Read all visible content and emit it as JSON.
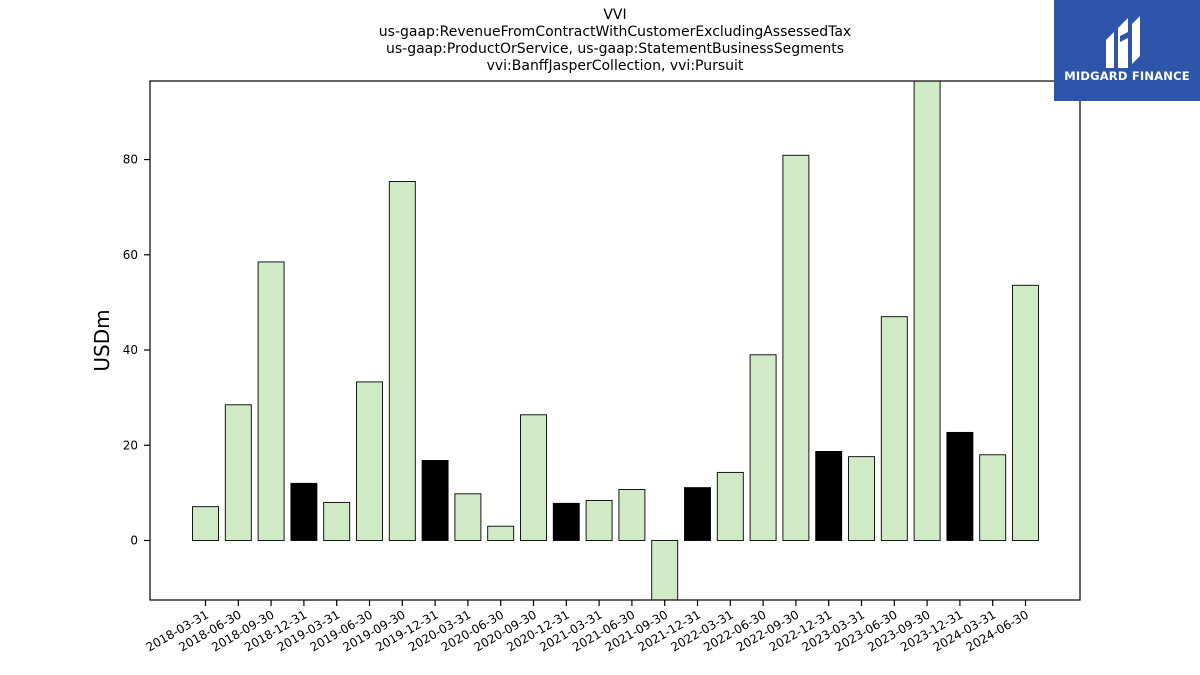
{
  "chart_data": {
    "type": "bar",
    "title_lines": [
      "VVI",
      "us-gaap:RevenueFromContractWithCustomerExcludingAssessedTax",
      "us-gaap:ProductOrService, us-gaap:StatementBusinessSegments",
      "vvi:BanffJasperCollection, vvi:Pursuit"
    ],
    "ylabel": "USDm",
    "xlabel": "",
    "ylim": [
      -12.5,
      96.5
    ],
    "yticks": [
      0,
      20,
      40,
      60,
      80
    ],
    "categories": [
      "2018-03-31",
      "2018-06-30",
      "2018-09-30",
      "2018-12-31",
      "2019-03-31",
      "2019-06-30",
      "2019-09-30",
      "2019-12-31",
      "2020-03-31",
      "2020-06-30",
      "2020-09-30",
      "2020-12-31",
      "2021-03-31",
      "2021-06-30",
      "2021-09-30",
      "2021-12-31",
      "2022-03-31",
      "2022-06-30",
      "2022-09-30",
      "2022-12-31",
      "2023-03-31",
      "2023-06-30",
      "2023-09-30",
      "2023-12-31",
      "2024-03-31",
      "2024-06-30"
    ],
    "values": [
      7.1,
      28.5,
      58.5,
      12.0,
      8.0,
      33.3,
      75.4,
      16.8,
      9.8,
      3.0,
      26.4,
      7.8,
      8.4,
      10.7,
      -12.5,
      11.1,
      14.3,
      39.0,
      80.9,
      18.7,
      17.6,
      47.0,
      96.5,
      22.7,
      18.0,
      53.6
    ],
    "highlight_categories": [
      "2018-12-31",
      "2019-12-31",
      "2020-12-31",
      "2021-12-31",
      "2022-12-31",
      "2023-12-31"
    ],
    "colors": {
      "bar": "#d0eac6",
      "highlight": "#000000",
      "edge": "#000000",
      "axis": "#000000"
    },
    "grid": false,
    "legend": "none"
  },
  "logo": {
    "text": "MIDGARD FINANCE",
    "background": "#2d55a9"
  }
}
